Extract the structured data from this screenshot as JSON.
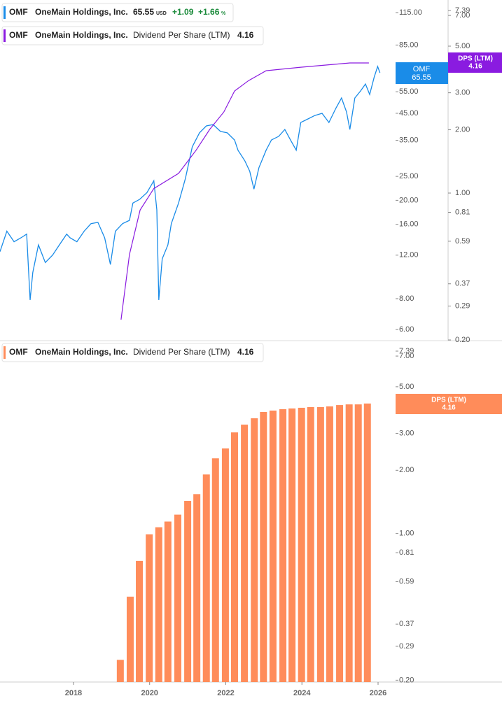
{
  "chart_data": [
    {
      "type": "line",
      "log_y": true,
      "log_y2": true,
      "xlim": [
        2016.07,
        2026.46
      ],
      "ylim": [
        5.41,
        129.3
      ],
      "yticks": [
        {
          "value": 6,
          "label": "6.00"
        },
        {
          "value": 8,
          "label": "8.00"
        },
        {
          "value": 12,
          "label": "12.00"
        },
        {
          "value": 16,
          "label": "16.00"
        },
        {
          "value": 20,
          "label": "20.00"
        },
        {
          "value": 25,
          "label": "25.00"
        },
        {
          "value": 35,
          "label": "35.00"
        },
        {
          "value": 45,
          "label": "45.00"
        },
        {
          "value": 55,
          "label": "55.00"
        },
        {
          "value": 85,
          "label": "85.00"
        },
        {
          "value": 115,
          "label": "115.00"
        }
      ],
      "y2lim": [
        0.1985,
        8.29
      ],
      "y2ticks": [
        {
          "value": 0.2,
          "label": "0.20"
        },
        0.29,
        0.37,
        0.59,
        0.81,
        {
          "value": 1,
          "label": "1.00"
        },
        {
          "value": 2,
          "label": "2.00"
        },
        {
          "value": 3,
          "label": "3.00"
        },
        {
          "value": 5,
          "label": "5.00"
        },
        {
          "value": 7,
          "label": "7.00"
        },
        7.39
      ],
      "series": [
        {
          "symbol": "OMF",
          "name": "OneMain Holdings, Inc.",
          "color": "#1a8ce8",
          "last": 65.55,
          "currency": "USD",
          "change_label": "+1.09",
          "change_pct_label": "+1.66",
          "pct_sign": "%",
          "x": [
            2016.07,
            2016.25,
            2016.44,
            2016.62,
            2016.77,
            2016.86,
            2016.93,
            2017.08,
            2017.26,
            2017.45,
            2017.63,
            2017.82,
            2017.91,
            2018.09,
            2018.28,
            2018.46,
            2018.64,
            2018.82,
            2018.97,
            2019.1,
            2019.29,
            2019.47,
            2019.56,
            2019.74,
            2019.93,
            2020.11,
            2020.19,
            2020.24,
            2020.33,
            2020.48,
            2020.57,
            2020.76,
            2020.94,
            2021.12,
            2021.31,
            2021.49,
            2021.67,
            2021.86,
            2022.04,
            2022.23,
            2022.32,
            2022.5,
            2022.63,
            2022.74,
            2022.87,
            2023.06,
            2023.2,
            2023.39,
            2023.55,
            2023.7,
            2023.85,
            2023.97,
            2024.16,
            2024.34,
            2024.53,
            2024.71,
            2024.89,
            2025.04,
            2025.17,
            2025.26,
            2025.39,
            2025.54,
            2025.67,
            2025.78,
            2025.9,
            2025.99,
            2026.05
          ],
          "values": [
            12.4,
            15.0,
            13.6,
            14.1,
            14.6,
            7.9,
            10.2,
            13.2,
            11.2,
            12.0,
            13.2,
            14.6,
            14.1,
            13.6,
            15.0,
            16.1,
            16.3,
            14.1,
            11.0,
            15.0,
            16.1,
            16.6,
            19.5,
            20.2,
            21.5,
            24.0,
            18.3,
            7.9,
            11.6,
            13.2,
            16.1,
            19.5,
            24.5,
            32.9,
            37.5,
            40.0,
            40.5,
            38.0,
            37.5,
            35.1,
            31.9,
            28.9,
            26.2,
            22.2,
            27.1,
            31.9,
            35.1,
            36.3,
            38.7,
            35.1,
            31.9,
            41.3,
            42.7,
            44.1,
            45.0,
            41.3,
            47.1,
            51.9,
            45.6,
            38.7,
            51.9,
            55.4,
            59.1,
            53.6,
            63.1,
            69.6,
            65.55
          ]
        },
        {
          "symbol": "OMF",
          "name": "OneMain Holdings, Inc.",
          "metric": "Dividend Per Share (LTM)",
          "color": "#8a1be0",
          "axis": "y2",
          "last": 4.16,
          "tag_label": "DPS (LTM)",
          "x": [
            2019.25,
            2019.47,
            2019.75,
            2020.11,
            2020.76,
            2021.22,
            2021.58,
            2021.95,
            2022.23,
            2022.6,
            2023.06,
            2023.97,
            2025.26,
            2025.76
          ],
          "values": [
            0.25,
            0.51,
            0.83,
            1.05,
            1.24,
            1.6,
            2.01,
            2.43,
            3.06,
            3.43,
            3.82,
            3.97,
            4.16,
            4.16
          ]
        }
      ]
    },
    {
      "type": "bar",
      "log_y": true,
      "xlim": [
        2016.07,
        2026.46
      ],
      "xticks": [
        2018,
        2020,
        2022,
        2024,
        2026
      ],
      "ylim": [
        0.196,
        8.29
      ],
      "yticks": [
        {
          "value": 0.2,
          "label": "0.20"
        },
        0.29,
        0.37,
        0.59,
        0.81,
        {
          "value": 1,
          "label": "1.00"
        },
        {
          "value": 2,
          "label": "2.00"
        },
        {
          "value": 3,
          "label": "3.00"
        },
        {
          "value": 5,
          "label": "5.00"
        },
        {
          "value": 7,
          "label": "7.00"
        },
        7.39
      ],
      "series": [
        {
          "symbol": "OMF",
          "name": "OneMain Holdings, Inc.",
          "metric": "Dividend Per Share (LTM)",
          "color": "#ff8c5a",
          "last": 4.16,
          "tag_label": "DPS (LTM)",
          "x": [
            2019.23,
            2019.49,
            2019.73,
            2019.99,
            2020.24,
            2020.48,
            2020.74,
            2021.0,
            2021.24,
            2021.49,
            2021.73,
            2021.99,
            2022.23,
            2022.49,
            2022.75,
            2022.99,
            2023.24,
            2023.5,
            2023.74,
            2023.99,
            2024.23,
            2024.49,
            2024.73,
            2024.99,
            2025.24,
            2025.48,
            2025.72
          ],
          "values": [
            0.25,
            0.5,
            0.74,
            0.99,
            1.07,
            1.14,
            1.23,
            1.43,
            1.54,
            1.91,
            2.28,
            2.54,
            3.03,
            3.3,
            3.54,
            3.79,
            3.85,
            3.91,
            3.94,
            3.97,
            4.0,
            4.0,
            4.03,
            4.09,
            4.12,
            4.12,
            4.16
          ]
        }
      ]
    }
  ]
}
